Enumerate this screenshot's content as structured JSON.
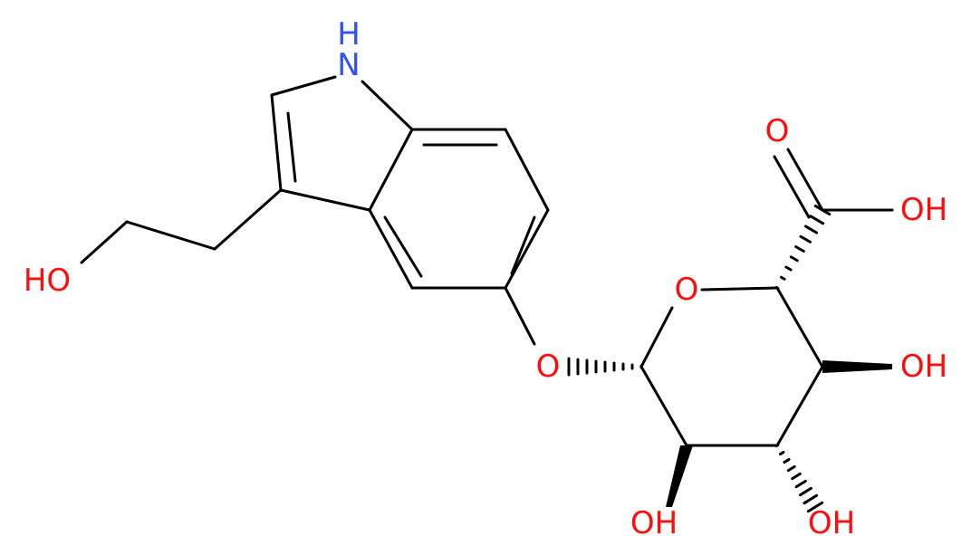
{
  "atoms": [
    "H",
    "N",
    "HO",
    "O",
    "OH",
    "O",
    "O",
    "OH",
    "OH",
    "OH"
  ]
}
